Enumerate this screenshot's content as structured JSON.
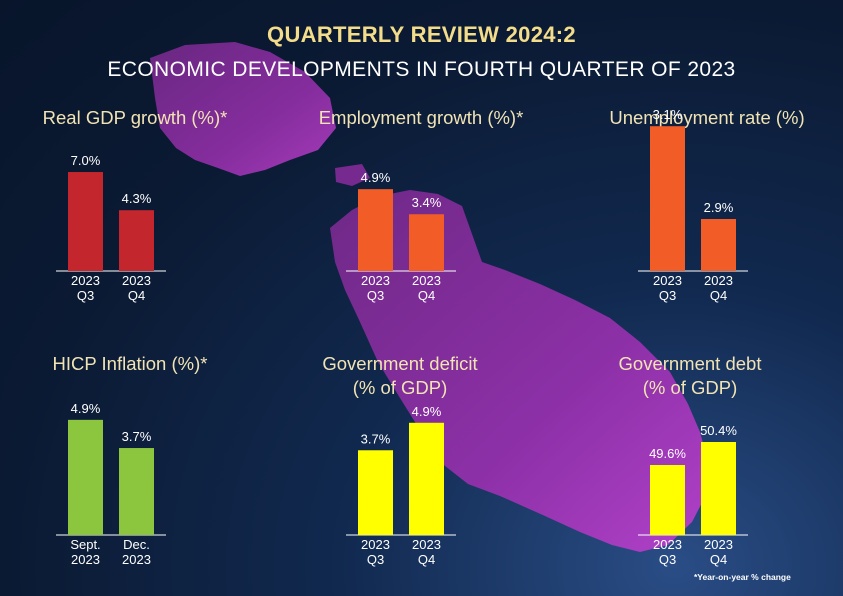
{
  "header": {
    "title": "QUARTERLY REVIEW 2024:2",
    "subtitle": "ECONOMIC DEVELOPMENTS IN FOURTH QUARTER OF 2023"
  },
  "footnote": "*Year-on-year % change",
  "colors": {
    "gdp": "#c4262d",
    "labour": "#f25c27",
    "inflation": "#8cc63f",
    "fiscal": "#ffff00",
    "map": "#8b2c9c"
  },
  "chart_data": [
    {
      "id": "gdp",
      "type": "bar",
      "title_lines": [
        "Real GDP growth (%)*"
      ],
      "categories": [
        [
          "2023",
          "Q3"
        ],
        [
          "2023",
          "Q4"
        ]
      ],
      "values": [
        7.0,
        4.3
      ],
      "value_labels": [
        "7.0%",
        "4.3%"
      ],
      "color": "#c4262d"
    },
    {
      "id": "employment",
      "type": "bar",
      "title_lines": [
        "Employment growth (%)*"
      ],
      "categories": [
        [
          "2023",
          "Q3"
        ],
        [
          "2023",
          "Q4"
        ]
      ],
      "values": [
        4.9,
        3.4
      ],
      "value_labels": [
        "4.9%",
        "3.4%"
      ],
      "color": "#f25c27"
    },
    {
      "id": "unemployment",
      "type": "bar",
      "title_lines": [
        "Unemployment rate (%)"
      ],
      "categories": [
        [
          "2023",
          "Q3"
        ],
        [
          "2023",
          "Q4"
        ]
      ],
      "values": [
        3.1,
        2.9
      ],
      "value_labels": [
        "3.1%",
        "2.9%"
      ],
      "color": "#f25c27"
    },
    {
      "id": "hicp",
      "type": "bar",
      "title_lines": [
        "HICP Inflation (%)*"
      ],
      "categories": [
        [
          "Sept.",
          "2023"
        ],
        [
          "Dec.",
          "2023"
        ]
      ],
      "values": [
        4.9,
        3.7
      ],
      "value_labels": [
        "4.9%",
        "3.7%"
      ],
      "color": "#8cc63f"
    },
    {
      "id": "deficit",
      "type": "bar",
      "title_lines": [
        "Government deficit",
        "(% of GDP)"
      ],
      "categories": [
        [
          "2023",
          "Q3"
        ],
        [
          "2023",
          "Q4"
        ]
      ],
      "values": [
        3.7,
        4.9
      ],
      "value_labels": [
        "3.7%",
        "4.9%"
      ],
      "color": "#ffff00"
    },
    {
      "id": "debt",
      "type": "bar",
      "title_lines": [
        "Government debt",
        "(% of GDP)"
      ],
      "categories": [
        [
          "2023",
          "Q3"
        ],
        [
          "2023",
          "Q4"
        ]
      ],
      "values": [
        49.6,
        50.4
      ],
      "value_labels": [
        "49.6%",
        "50.4%"
      ],
      "color": "#ffff00"
    }
  ]
}
